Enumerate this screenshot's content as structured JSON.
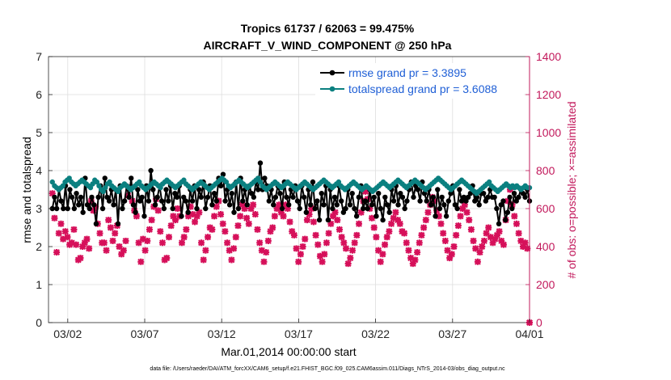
{
  "chart_data": {
    "type": "line",
    "title_line1": "Tropics 61737 / 62063 = 99.475%",
    "title_line2": "AIRCRAFT_V_WIND_COMPONENT @ 250 hPa",
    "ylabel_left": "rmse and totalspread",
    "ylabel_right": "# of obs: o=possible; ×=assimilated",
    "xlabel": "Mar.01,2014 00:00:00 start",
    "footer": "data file: /Users/raeder/DAI/ATM_forcXX/CAM6_setup/f.e21.FHIST_BGC.f09_025.CAM6assim.011/Diags_NTrS_2014-03/obs_diag_output.nc",
    "x_unit": "days since Mar.01,2014 00:00",
    "xlim": [
      -0.25,
      31.0
    ],
    "ylim_left": [
      0,
      7
    ],
    "ylim_right": [
      0,
      1400
    ],
    "yticks_left": [
      "0",
      "1",
      "2",
      "3",
      "4",
      "5",
      "6",
      "7"
    ],
    "yticks_right": [
      "0",
      "200",
      "400",
      "600",
      "800",
      "1000",
      "1200",
      "1400"
    ],
    "xticks": [
      {
        "x": 1,
        "label": "03/02"
      },
      {
        "x": 6,
        "label": "03/07"
      },
      {
        "x": 11,
        "label": "03/12"
      },
      {
        "x": 16,
        "label": "03/17"
      },
      {
        "x": 21,
        "label": "03/22"
      },
      {
        "x": 26,
        "label": "03/27"
      },
      {
        "x": 31,
        "label": "04/01"
      }
    ],
    "grid": true,
    "legend_position": "top-right",
    "colors": {
      "rmse": "#000000",
      "spread": "#0b8080",
      "obs": "#d6105a",
      "right_axis": "#c2185b",
      "legend_text": "#1f5fd6"
    },
    "series": [
      {
        "name": "rmse grand pr = 3.3895",
        "axis": "left",
        "values": [
          3.0,
          3.3,
          3.0,
          3.5,
          3.2,
          3.0,
          3.6,
          3.0,
          3.5,
          3.3,
          3.0,
          3.4,
          3.1,
          3.3,
          2.9,
          3.8,
          3.1,
          3.0,
          3.3,
          3.1,
          2.6,
          3.3,
          3.6,
          3.0,
          3.8,
          3.3,
          3.2,
          3.5,
          3.1,
          3.5,
          2.6,
          3.6,
          3.0,
          3.2,
          3.6,
          3.3,
          3.8,
          3.1,
          2.9,
          3.5,
          3.2,
          3.3,
          2.8,
          3.6,
          3.2,
          4.0,
          3.5,
          3.1,
          3.3,
          3.6,
          3.2,
          3.0,
          3.5,
          3.2,
          3.6,
          3.0,
          3.4,
          3.3,
          3.6,
          2.8,
          3.3,
          3.2,
          2.9,
          3.5,
          3.2,
          3.6,
          3.0,
          3.5,
          3.3,
          3.7,
          3.0,
          3.3,
          3.6,
          3.1,
          3.4,
          3.2,
          3.8,
          3.6,
          3.9,
          3.2,
          3.5,
          3.1,
          3.4,
          2.9,
          3.7,
          3.0,
          3.8,
          3.2,
          3.5,
          3.1,
          3.6,
          3.4,
          3.3,
          3.7,
          3.5,
          4.2,
          3.5,
          3.8,
          3.6,
          3.2,
          3.5,
          3.1,
          3.3,
          3.6,
          3.4,
          3.0,
          3.7,
          3.3,
          3.1,
          3.5,
          3.3,
          3.6,
          3.2,
          3.0,
          3.6,
          3.3,
          2.9,
          3.5,
          3.1,
          3.7,
          3.0,
          3.2,
          2.7,
          3.4,
          3.1,
          3.6,
          2.7,
          3.5,
          3.0,
          3.3,
          3.1,
          3.6,
          3.2,
          2.9,
          3.0,
          3.5,
          3.1,
          3.4,
          3.0,
          2.8,
          3.3,
          3.6,
          3.0,
          3.2,
          3.0,
          3.5,
          3.1,
          3.3,
          2.8,
          3.4,
          3.0,
          2.7,
          3.3,
          3.1,
          2.9,
          3.5,
          3.2,
          3.6,
          3.1,
          3.4,
          3.3,
          3.0,
          3.2,
          3.5,
          3.7,
          3.3,
          3.6,
          3.5,
          3.2,
          3.7,
          3.4,
          3.2,
          3.5,
          3.1,
          3.3,
          2.8,
          3.5,
          3.0,
          3.3,
          3.1,
          2.8,
          3.2,
          3.4,
          3.6,
          3.1,
          3.0,
          3.5,
          3.2,
          3.3,
          3.2,
          3.3,
          3.4,
          3.6,
          3.2,
          3.3,
          3.1,
          3.4,
          3.4,
          3.2,
          3.3,
          3.5,
          3.3,
          3.3,
          3.0,
          2.6,
          3.1,
          3.2,
          2.7,
          2.9,
          3.3,
          3.0,
          3.4,
          3.2,
          3.3,
          3.5,
          3.4,
          3.3,
          3.5,
          3.2
        ]
      },
      {
        "name": "totalspread grand pr = 3.6088",
        "axis": "left",
        "values": [
          3.7,
          3.6,
          3.55,
          3.5,
          3.55,
          3.6,
          3.7,
          3.75,
          3.8,
          3.7,
          3.65,
          3.6,
          3.65,
          3.7,
          3.75,
          3.7,
          3.65,
          3.6,
          3.55,
          3.65,
          3.75,
          3.7,
          3.6,
          3.5,
          3.45,
          3.55,
          3.65,
          3.7,
          3.6,
          3.55,
          3.5,
          3.45,
          3.55,
          3.6,
          3.65,
          3.6,
          3.55,
          3.5,
          3.55,
          3.6,
          3.65,
          3.7,
          3.6,
          3.55,
          3.5,
          3.55,
          3.6,
          3.65,
          3.7,
          3.65,
          3.6,
          3.55,
          3.65,
          3.7,
          3.75,
          3.7,
          3.65,
          3.6,
          3.55,
          3.6,
          3.65,
          3.7,
          3.75,
          3.65,
          3.6,
          3.55,
          3.5,
          3.55,
          3.6,
          3.65,
          3.7,
          3.65,
          3.6,
          3.55,
          3.5,
          3.55,
          3.6,
          3.65,
          3.7,
          3.75,
          3.8,
          3.75,
          3.7,
          3.6,
          3.55,
          3.6,
          3.65,
          3.7,
          3.75,
          3.7,
          3.65,
          3.6,
          3.55,
          3.6,
          3.65,
          3.7,
          3.75,
          3.8,
          3.7,
          3.6,
          3.55,
          3.5,
          3.55,
          3.6,
          3.65,
          3.7,
          3.65,
          3.6,
          3.55,
          3.6,
          3.65,
          3.7,
          3.65,
          3.6,
          3.55,
          3.5,
          3.55,
          3.6,
          3.65,
          3.7,
          3.65,
          3.6,
          3.55,
          3.5,
          3.55,
          3.6,
          3.65,
          3.7,
          3.75,
          3.7,
          3.65,
          3.6,
          3.55,
          3.6,
          3.65,
          3.7,
          3.6,
          3.55,
          3.5,
          3.55,
          3.6,
          3.65,
          3.7,
          3.65,
          3.6,
          3.55,
          3.5,
          3.55,
          3.6,
          3.55,
          3.5,
          3.45,
          3.5,
          3.55,
          3.6,
          3.65,
          3.7,
          3.65,
          3.6,
          3.55,
          3.6,
          3.65,
          3.7,
          3.75,
          3.7,
          3.65,
          3.6,
          3.55,
          3.6,
          3.65,
          3.7,
          3.75,
          3.7,
          3.65,
          3.6,
          3.55,
          3.5,
          3.55,
          3.6,
          3.65,
          3.7,
          3.75,
          3.8,
          3.75,
          3.7,
          3.65,
          3.6,
          3.55,
          3.5,
          3.55,
          3.6,
          3.65,
          3.7,
          3.75,
          3.7,
          3.65,
          3.6,
          3.55,
          3.5,
          3.45,
          3.4,
          3.45,
          3.5,
          3.55,
          3.6,
          3.65,
          3.7,
          3.6,
          3.55,
          3.5,
          3.45,
          3.5,
          3.55,
          3.6,
          3.65,
          3.6,
          3.55,
          3.6,
          3.55,
          3.6,
          3.55,
          3.5,
          3.55,
          3.6,
          3.55,
          3.55
        ]
      },
      {
        "name": "obs assimilated",
        "axis": "right",
        "values": [
          680,
          550,
          370,
          470,
          520,
          440,
          480,
          450,
          410,
          420,
          490,
          410,
          330,
          340,
          400,
          420,
          440,
          390,
          640,
          590,
          610,
          520,
          470,
          420,
          420,
          380,
          540,
          500,
          430,
          470,
          510,
          400,
          360,
          380,
          430,
          670,
          710,
          640,
          590,
          560,
          420,
          320,
          440,
          380,
          430,
          490,
          540,
          610,
          650,
          590,
          480,
          420,
          330,
          340,
          450,
          510,
          560,
          540,
          600,
          560,
          420,
          450,
          490,
          560,
          610,
          570,
          530,
          560,
          580,
          420,
          330,
          380,
          450,
          500,
          490,
          560,
          610,
          640,
          570,
          520,
          480,
          420,
          380,
          330,
          390,
          450,
          510,
          560,
          620,
          600,
          550,
          520,
          600,
          620,
          570,
          490,
          420,
          380,
          320,
          370,
          430,
          480,
          500,
          560,
          600,
          620,
          580,
          560,
          620,
          600,
          530,
          480,
          460,
          390,
          320,
          360,
          400,
          440,
          540,
          570,
          600,
          530,
          460,
          410,
          350,
          320,
          360,
          420,
          470,
          520,
          560,
          580,
          540,
          490,
          450,
          420,
          390,
          310,
          340,
          380,
          420,
          460,
          520,
          580,
          640,
          690,
          650,
          600,
          550,
          500,
          450,
          380,
          320,
          360,
          410,
          450,
          480,
          520,
          550,
          580,
          540,
          520,
          480,
          470,
          420,
          380,
          340,
          310,
          330,
          370,
          420,
          460,
          500,
          540,
          580,
          620,
          660,
          640,
          590,
          560,
          520,
          470,
          430,
          380,
          340,
          360,
          400,
          460,
          510,
          560,
          600,
          620,
          580,
          540,
          490,
          430,
          390,
          320,
          370,
          400,
          430,
          470,
          500,
          450,
          420,
          440,
          460,
          480,
          430,
          410,
          540,
          640,
          700,
          620,
          560,
          520,
          470,
          430,
          400,
          420,
          390,
          0
        ]
      }
    ]
  }
}
